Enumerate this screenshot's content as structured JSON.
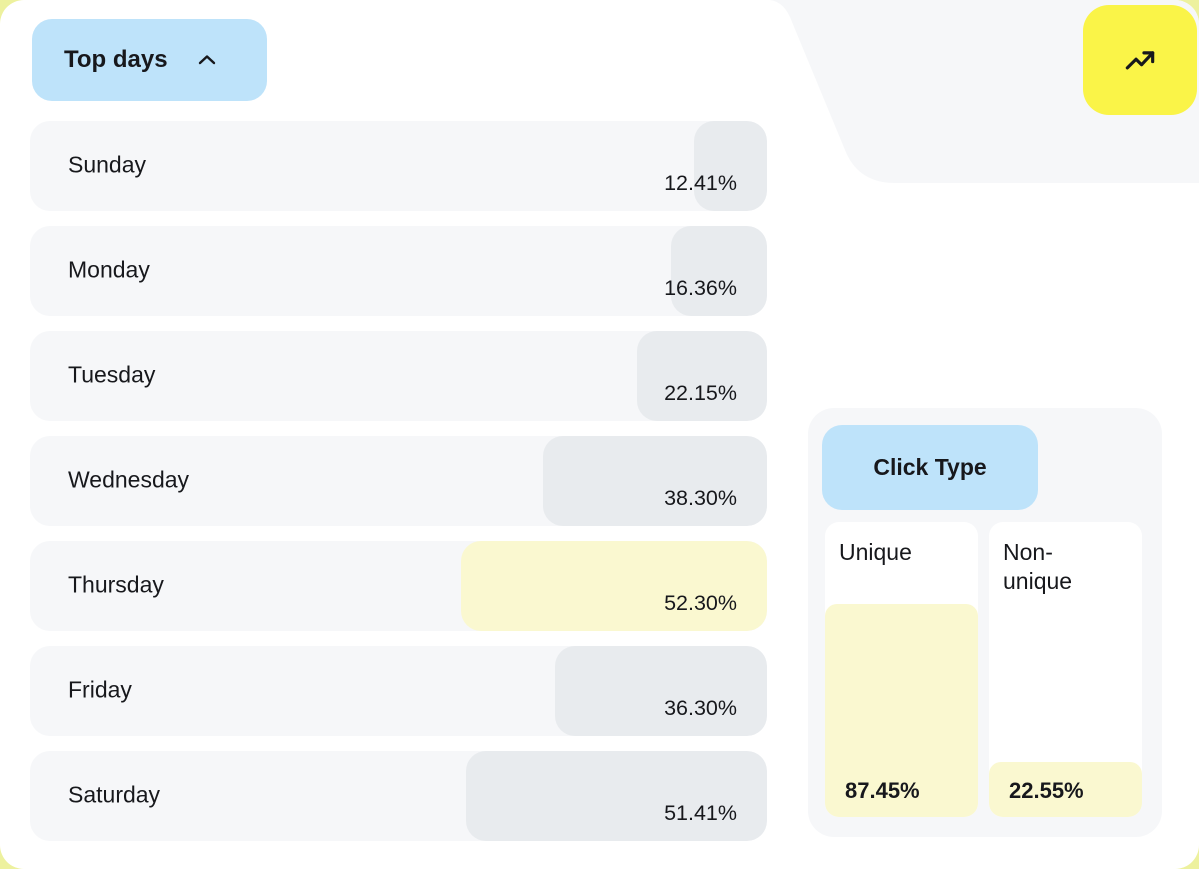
{
  "header": {
    "top_days_label": "Top days",
    "chevron_icon": "chevron-up-icon",
    "trend_icon": "trending-up-icon"
  },
  "click_type": {
    "label": "Click Type",
    "cards": [
      {
        "label": "Unique",
        "value": "87.45%"
      },
      {
        "label": "Non-unique",
        "value": "22.55%"
      }
    ]
  },
  "chart_data": [
    {
      "type": "bar",
      "title": "Top days",
      "orientation": "horizontal-right-anchored",
      "categories": [
        "Sunday",
        "Monday",
        "Tuesday",
        "Wednesday",
        "Thursday",
        "Friday",
        "Saturday"
      ],
      "values": [
        12.41,
        16.36,
        22.15,
        38.3,
        52.3,
        36.3,
        51.41
      ],
      "display_values": [
        "12.41%",
        "16.36%",
        "22.15%",
        "38.30%",
        "52.30%",
        "36.30%",
        "51.41%"
      ],
      "unit": "%",
      "highlight_index": 4,
      "highlight_category": "Thursday",
      "legend": "none",
      "grid": false
    },
    {
      "type": "bar",
      "title": "Click Type",
      "orientation": "vertical-bottom-anchored",
      "categories": [
        "Unique",
        "Non-unique"
      ],
      "values": [
        87.45,
        22.55
      ],
      "display_values": [
        "87.45%",
        "22.55%"
      ],
      "unit": "%",
      "legend": "none",
      "grid": false
    }
  ],
  "colors": {
    "accent_blue": "#BEE3FA",
    "accent_yellow": "#FAF448",
    "bar_gray": "#E8EBEE",
    "bar_yellow": "#FAF8D0",
    "surface_gray": "#F6F7F9",
    "text_dark": "#17181C",
    "outer_bg": "#EDF19E"
  }
}
